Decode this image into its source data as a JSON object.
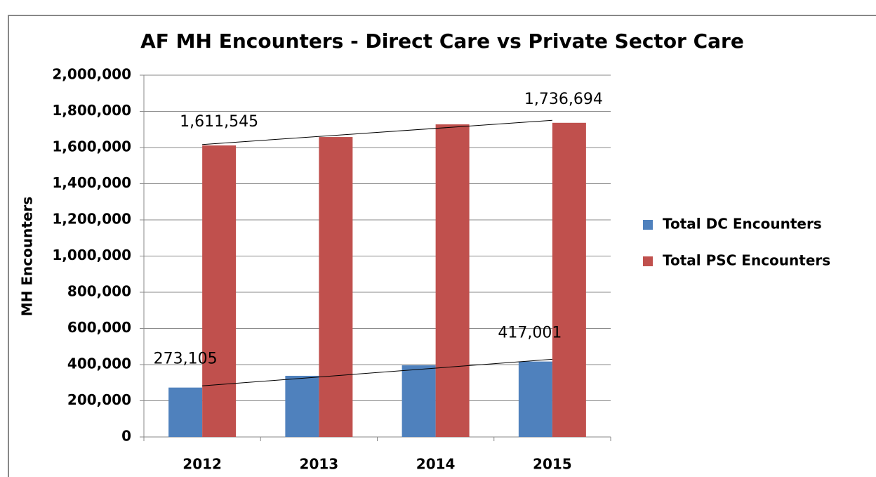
{
  "chart_data": {
    "type": "bar",
    "title": "AF MH Encounters - Direct Care vs Private Sector Care",
    "y_label": "MH Encounters",
    "categories": [
      "2012",
      "2013",
      "2014",
      "2015"
    ],
    "series": [
      {
        "name": "Total DC Encounters",
        "color": "#4f81bd",
        "values": [
          273105,
          338000,
          396000,
          417001
        ],
        "value_labels": [
          "273,105",
          null,
          null,
          "417,001"
        ]
      },
      {
        "name": "Total PSC Encounters",
        "color": "#c0504d",
        "values": [
          1611545,
          1658000,
          1728000,
          1736694
        ],
        "value_labels": [
          "1,611,545",
          null,
          null,
          "1,736,694"
        ]
      }
    ],
    "ylim": [
      0,
      2000000
    ],
    "yticks": [
      0,
      {
        "value": 200000,
        "label": "200,000"
      },
      {
        "value": 400000,
        "label": "400,000"
      },
      {
        "value": 600000,
        "label": "600,000"
      },
      {
        "value": 800000,
        "label": "800,000"
      },
      {
        "value": 1000000,
        "label": "1,000,000"
      },
      {
        "value": 1200000,
        "label": "1,200,000"
      },
      {
        "value": 1400000,
        "label": "1,400,000"
      },
      {
        "value": 1600000,
        "label": "1,600,000"
      },
      {
        "value": 1800000,
        "label": "1,800,000"
      },
      {
        "value": 2000000,
        "label": "2,000,000"
      }
    ],
    "grid": true,
    "trendline": true,
    "legend": "right"
  }
}
